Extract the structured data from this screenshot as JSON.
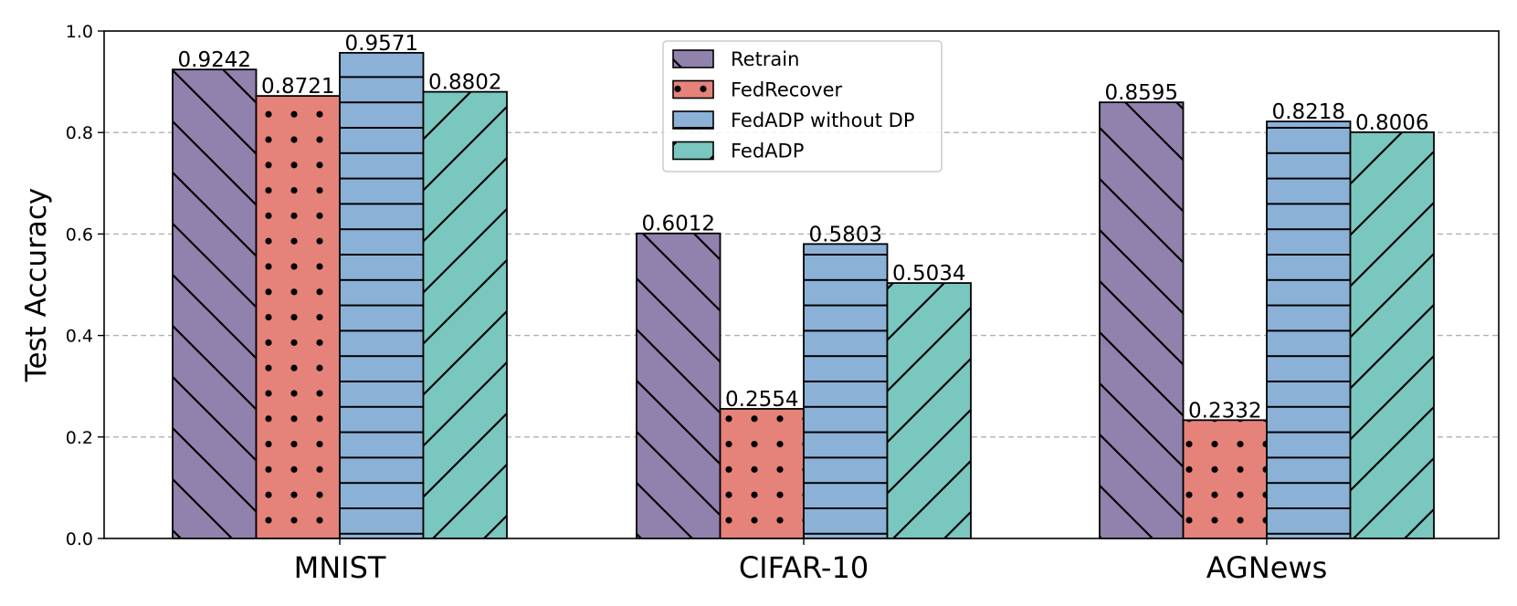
{
  "chart_data": {
    "type": "bar",
    "title": "",
    "xlabel": "",
    "ylabel": "Test Accuracy",
    "ylim": [
      0,
      1.0
    ],
    "yticks": [
      "0.0",
      "0.2",
      "0.4",
      "0.6",
      "0.8",
      "1.0"
    ],
    "grid": "horizontal dashed",
    "legend_position": "top-center",
    "categories": [
      "MNIST",
      "CIFAR-10",
      "AGNews"
    ],
    "series": [
      {
        "name": "Retrain",
        "color": "#9181ad",
        "pattern": "backslash",
        "values": [
          0.9242,
          0.6012,
          0.8595
        ],
        "labels": [
          "0.9242",
          "0.6012",
          "0.8595"
        ]
      },
      {
        "name": "FedRecover",
        "color": "#e5837a",
        "pattern": "dots",
        "values": [
          0.8721,
          0.2554,
          0.2332
        ],
        "labels": [
          "0.8721",
          "0.2554",
          "0.2332"
        ]
      },
      {
        "name": "FedADP without DP",
        "color": "#8bb1d6",
        "pattern": "horizontal",
        "values": [
          0.9571,
          0.5803,
          0.8218
        ],
        "labels": [
          "0.9571",
          "0.5803",
          "0.8218"
        ]
      },
      {
        "name": "FedADP",
        "color": "#79c7bf",
        "pattern": "slash",
        "values": [
          0.8802,
          0.5034,
          0.8006
        ],
        "labels": [
          "0.8802",
          "0.5034",
          "0.8006"
        ]
      }
    ]
  }
}
